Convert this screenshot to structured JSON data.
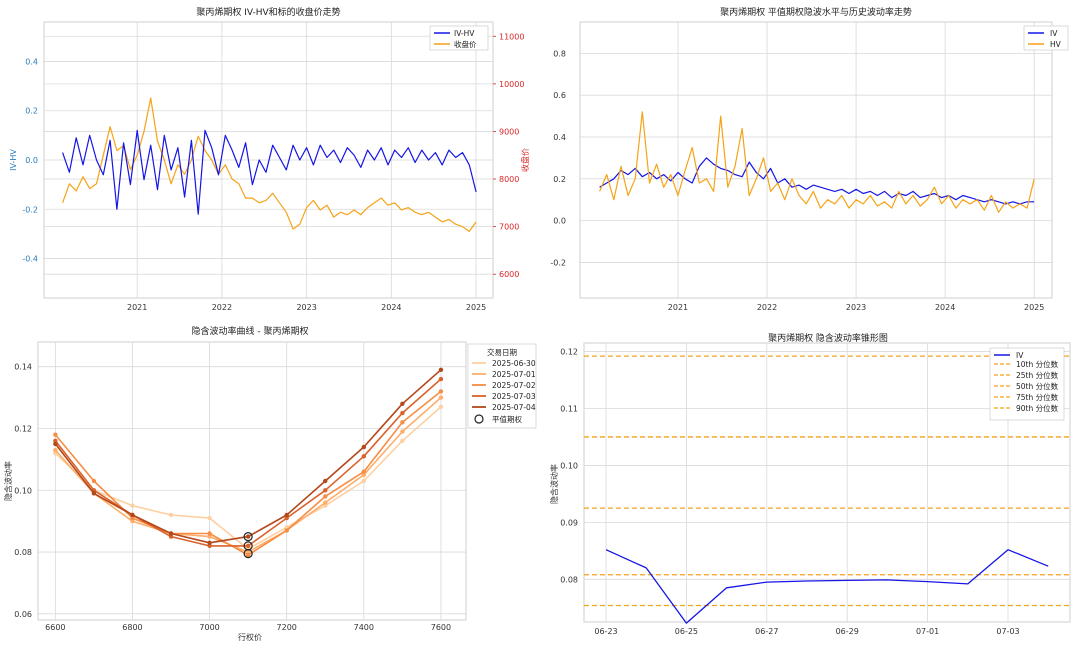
{
  "colors": {
    "iv": "#1515e6",
    "hv": "#f5a316",
    "pct": "#f5a316",
    "blue_axis": "#2a7db8",
    "red_axis": "#d62728"
  },
  "chart_data": [
    {
      "id": "p1",
      "type": "line",
      "title": "聚丙烯期权 IV-HV和标的收盘价走势",
      "ylabel": "IV-HV",
      "y2label": "收盘价",
      "xticks": [
        "2021",
        "2022",
        "2023",
        "2024",
        "2025"
      ],
      "yticks": [
        "-0.4",
        "-0.2",
        "0.0",
        "0.2",
        "0.4"
      ],
      "y2ticks": [
        "6000",
        "7000",
        "8000",
        "9000",
        "10000",
        "11000"
      ],
      "ylim": [
        -0.56,
        0.56
      ],
      "y2lim": [
        5500,
        11300
      ],
      "series": [
        {
          "name": "IV-HV",
          "axis": "left",
          "x": [
            2020.62,
            2020.7,
            2020.78,
            2020.86,
            2020.94,
            2021.02,
            2021.1,
            2021.18,
            2021.26,
            2021.34,
            2021.42,
            2021.5,
            2021.58,
            2021.66,
            2021.74,
            2021.82,
            2021.9,
            2021.98,
            2022.06,
            2022.14,
            2022.22,
            2022.3,
            2022.38,
            2022.46,
            2022.54,
            2022.62,
            2022.7,
            2022.78,
            2022.86,
            2022.94,
            2023.02,
            2023.1,
            2023.18,
            2023.26,
            2023.34,
            2023.42,
            2023.5,
            2023.58,
            2023.66,
            2023.74,
            2023.82,
            2023.9,
            2023.98,
            2024.06,
            2024.14,
            2024.22,
            2024.3,
            2024.38,
            2024.46,
            2024.54,
            2024.62,
            2024.7,
            2024.78,
            2024.86,
            2024.94,
            2025.02,
            2025.1,
            2025.18,
            2025.26,
            2025.34,
            2025.42,
            2025.5
          ],
          "values": [
            0.03,
            -0.05,
            0.09,
            -0.02,
            0.1,
            0.0,
            -0.06,
            0.08,
            -0.2,
            0.07,
            -0.1,
            0.12,
            -0.08,
            0.06,
            -0.12,
            0.1,
            -0.04,
            0.05,
            -0.15,
            0.08,
            -0.22,
            0.12,
            0.05,
            -0.06,
            0.1,
            0.04,
            -0.03,
            0.07,
            -0.1,
            0.0,
            -0.05,
            0.06,
            0.01,
            -0.04,
            0.06,
            0.0,
            0.05,
            -0.02,
            0.06,
            0.01,
            0.04,
            -0.01,
            0.05,
            0.02,
            -0.03,
            0.04,
            0.0,
            0.05,
            -0.02,
            0.04,
            0.01,
            0.05,
            -0.01,
            0.04,
            0.0,
            0.03,
            -0.02,
            0.04,
            0.01,
            0.03,
            -0.02,
            -0.13
          ]
        },
        {
          "name": "收盘价",
          "axis": "right",
          "x": [
            2020.62,
            2020.7,
            2020.78,
            2020.86,
            2020.94,
            2021.02,
            2021.1,
            2021.18,
            2021.26,
            2021.34,
            2021.42,
            2021.5,
            2021.58,
            2021.66,
            2021.74,
            2021.82,
            2021.9,
            2021.98,
            2022.06,
            2022.14,
            2022.22,
            2022.3,
            2022.38,
            2022.46,
            2022.54,
            2022.62,
            2022.7,
            2022.78,
            2022.86,
            2022.94,
            2023.02,
            2023.1,
            2023.18,
            2023.26,
            2023.34,
            2023.42,
            2023.5,
            2023.58,
            2023.66,
            2023.74,
            2023.82,
            2023.9,
            2023.98,
            2024.06,
            2024.14,
            2024.22,
            2024.3,
            2024.38,
            2024.46,
            2024.54,
            2024.62,
            2024.7,
            2024.78,
            2024.86,
            2024.94,
            2025.02,
            2025.1,
            2025.18,
            2025.26,
            2025.34,
            2025.42,
            2025.5
          ],
          "values": [
            7500,
            7900,
            7750,
            8050,
            7800,
            7900,
            8500,
            9100,
            8600,
            8700,
            8200,
            8500,
            9000,
            9700,
            8800,
            8400,
            7900,
            8300,
            8100,
            8400,
            8900,
            8600,
            8400,
            8100,
            8300,
            8000,
            7900,
            7600,
            7600,
            7500,
            7550,
            7700,
            7500,
            7300,
            6950,
            7050,
            7400,
            7550,
            7350,
            7450,
            7200,
            7300,
            7250,
            7350,
            7250,
            7400,
            7500,
            7600,
            7450,
            7500,
            7350,
            7400,
            7300,
            7250,
            7300,
            7200,
            7100,
            7150,
            7050,
            7000,
            6900,
            7100
          ]
        }
      ]
    },
    {
      "id": "p2",
      "type": "line",
      "title": "聚丙烯期权 平值期权隐波水平与历史波动率走势",
      "xticks": [
        "2021",
        "2022",
        "2023",
        "2024",
        "2025"
      ],
      "yticks": [
        "-0.2",
        "0.0",
        "0.2",
        "0.4",
        "0.6",
        "0.8"
      ],
      "ylim": [
        -0.37,
        0.95
      ],
      "series": [
        {
          "name": "IV",
          "x": [
            2020.62,
            2020.7,
            2020.78,
            2020.86,
            2020.94,
            2021.02,
            2021.1,
            2021.18,
            2021.26,
            2021.34,
            2021.42,
            2021.5,
            2021.58,
            2021.66,
            2021.74,
            2021.82,
            2021.9,
            2021.98,
            2022.06,
            2022.14,
            2022.22,
            2022.3,
            2022.38,
            2022.46,
            2022.54,
            2022.62,
            2022.7,
            2022.78,
            2022.86,
            2022.94,
            2023.02,
            2023.1,
            2023.18,
            2023.26,
            2023.34,
            2023.42,
            2023.5,
            2023.58,
            2023.66,
            2023.74,
            2023.82,
            2023.9,
            2023.98,
            2024.06,
            2024.14,
            2024.22,
            2024.3,
            2024.38,
            2024.46,
            2024.54,
            2024.62,
            2024.7,
            2024.78,
            2024.86,
            2024.94,
            2025.02,
            2025.1,
            2025.18,
            2025.26,
            2025.34,
            2025.42,
            2025.5
          ],
          "values": [
            0.16,
            0.18,
            0.2,
            0.24,
            0.22,
            0.25,
            0.21,
            0.23,
            0.2,
            0.22,
            0.19,
            0.23,
            0.2,
            0.18,
            0.26,
            0.3,
            0.27,
            0.25,
            0.24,
            0.22,
            0.21,
            0.28,
            0.23,
            0.2,
            0.25,
            0.18,
            0.2,
            0.16,
            0.17,
            0.15,
            0.17,
            0.16,
            0.15,
            0.14,
            0.15,
            0.13,
            0.15,
            0.13,
            0.14,
            0.12,
            0.14,
            0.11,
            0.13,
            0.12,
            0.14,
            0.11,
            0.12,
            0.13,
            0.11,
            0.12,
            0.1,
            0.12,
            0.11,
            0.1,
            0.09,
            0.1,
            0.09,
            0.08,
            0.09,
            0.08,
            0.09,
            0.09
          ]
        },
        {
          "name": "HV",
          "x": [
            2020.62,
            2020.7,
            2020.78,
            2020.86,
            2020.94,
            2021.02,
            2021.1,
            2021.18,
            2021.26,
            2021.34,
            2021.42,
            2021.5,
            2021.58,
            2021.66,
            2021.74,
            2021.82,
            2021.9,
            2021.98,
            2022.06,
            2022.14,
            2022.22,
            2022.3,
            2022.38,
            2022.46,
            2022.54,
            2022.62,
            2022.7,
            2022.78,
            2022.86,
            2022.94,
            2023.02,
            2023.1,
            2023.18,
            2023.26,
            2023.34,
            2023.42,
            2023.5,
            2023.58,
            2023.66,
            2023.74,
            2023.82,
            2023.9,
            2023.98,
            2024.06,
            2024.14,
            2024.22,
            2024.3,
            2024.38,
            2024.46,
            2024.54,
            2024.62,
            2024.7,
            2024.78,
            2024.86,
            2024.94,
            2025.02,
            2025.1,
            2025.18,
            2025.26,
            2025.34,
            2025.42,
            2025.5
          ],
          "values": [
            0.14,
            0.22,
            0.1,
            0.26,
            0.12,
            0.2,
            0.52,
            0.18,
            0.27,
            0.16,
            0.22,
            0.12,
            0.24,
            0.35,
            0.18,
            0.2,
            0.14,
            0.5,
            0.16,
            0.26,
            0.44,
            0.12,
            0.2,
            0.3,
            0.14,
            0.18,
            0.1,
            0.2,
            0.12,
            0.08,
            0.14,
            0.06,
            0.1,
            0.08,
            0.12,
            0.06,
            0.1,
            0.08,
            0.12,
            0.07,
            0.09,
            0.06,
            0.14,
            0.08,
            0.12,
            0.07,
            0.1,
            0.16,
            0.08,
            0.12,
            0.06,
            0.1,
            0.08,
            0.1,
            0.05,
            0.12,
            0.04,
            0.09,
            0.06,
            0.08,
            0.06,
            0.2
          ]
        }
      ]
    },
    {
      "id": "p3",
      "type": "line",
      "title": "隐含波动率曲线 - 聚丙烯期权",
      "xlabel": "行权价",
      "ylabel": "隐含波动率",
      "xticks": [
        "6600",
        "6800",
        "7000",
        "7200",
        "7400",
        "7600"
      ],
      "yticks": [
        "0.06",
        "0.08",
        "0.10",
        "0.12",
        "0.14"
      ],
      "xlim": [
        6555,
        7665
      ],
      "ylim": [
        0.058,
        0.148
      ],
      "legend_title": "交易日期",
      "x": [
        6600,
        6700,
        6800,
        6900,
        7000,
        7100,
        7200,
        7300,
        7400,
        7500,
        7600
      ],
      "series": [
        {
          "name": "2025-06-30",
          "color": "#fdd0a2",
          "values": [
            0.112,
            0.1,
            0.095,
            0.092,
            0.091,
            0.081,
            0.088,
            0.095,
            0.103,
            0.116,
            0.127
          ]
        },
        {
          "name": "2025-07-01",
          "color": "#fdae6b",
          "values": [
            0.113,
            0.099,
            0.09,
            0.086,
            0.085,
            0.08,
            0.087,
            0.096,
            0.105,
            0.119,
            0.13
          ]
        },
        {
          "name": "2025-07-02",
          "color": "#f68d45",
          "values": [
            0.118,
            0.103,
            0.091,
            0.086,
            0.086,
            0.079,
            0.087,
            0.098,
            0.106,
            0.122,
            0.132
          ]
        },
        {
          "name": "2025-07-03",
          "color": "#d9622b",
          "values": [
            0.116,
            0.1,
            0.092,
            0.085,
            0.082,
            0.082,
            0.091,
            0.1,
            0.111,
            0.125,
            0.136
          ]
        },
        {
          "name": "2025-07-04",
          "color": "#b3481a",
          "values": [
            0.115,
            0.099,
            0.092,
            0.086,
            0.083,
            0.085,
            0.092,
            0.103,
            0.114,
            0.128,
            0.139
          ]
        }
      ],
      "atm_label": "平值期权",
      "atm_points": [
        [
          7100,
          0.085
        ],
        [
          7100,
          0.082
        ],
        [
          7100,
          0.0795
        ]
      ]
    },
    {
      "id": "p4",
      "type": "line",
      "title": "聚丙烯期权 隐含波动率锥形图",
      "ylabel": "隐含波动率",
      "xticks": [
        "06-23",
        "06-25",
        "06-27",
        "06-29",
        "07-01",
        "07-03"
      ],
      "yticks": [
        "0.08",
        "0.09",
        "0.10",
        "0.11",
        "0.12"
      ],
      "ylim": [
        0.0725,
        0.1215
      ],
      "series": [
        {
          "name": "IV",
          "x": [
            "06-23",
            "06-24",
            "06-25",
            "06-26",
            "06-27",
            "06-28",
            "06-29",
            "06-30",
            "07-01",
            "07-02",
            "07-03",
            "07-04"
          ],
          "values": [
            0.0852,
            0.082,
            0.0723,
            0.0785,
            0.0795,
            0.0797,
            0.0798,
            0.0799,
            0.0796,
            0.0792,
            0.0852,
            0.0823
          ]
        }
      ],
      "percentiles": [
        {
          "name": "10th 分位数",
          "value": 0.0754
        },
        {
          "name": "25th 分位数",
          "value": 0.0808
        },
        {
          "name": "50th 分位数",
          "value": 0.0925
        },
        {
          "name": "75th 分位数",
          "value": 0.105
        },
        {
          "name": "90th 分位数",
          "value": 0.1192
        }
      ]
    }
  ]
}
